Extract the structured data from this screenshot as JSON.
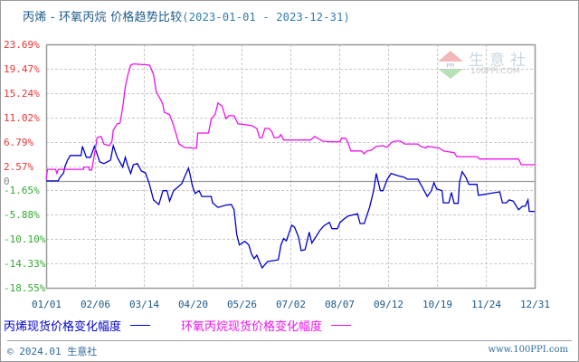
{
  "title": {
    "main": "丙烯 - 环氧丙烷 价格趋势比较",
    "range": "(2023-01-01 - 2023-12-31)"
  },
  "watermark": {
    "cn": "生意社",
    "en": "100PPI.COM",
    "icon": "ppi-logo-icon"
  },
  "footer": {
    "left": "© 2024.01 生意社",
    "right": "www.100PPI.com"
  },
  "colors": {
    "series1": "#0000cc",
    "series2": "#ee11ee",
    "positive_label": "#ee3333",
    "negative_label": "#33aa33",
    "zero_label": "#888888",
    "grid": "#c8c8c8",
    "axis": "#999999",
    "title": "#1c5a8c"
  },
  "legend": {
    "series1_label": "丙烯现货价格变化幅度",
    "series2_label": "环氧丙烷现货价格变化幅度"
  },
  "chart_data": {
    "type": "line",
    "title": "丙烯 - 环氧丙烷 价格趋势比较(2023-01-01 - 2023-12-31)",
    "xlabel": "",
    "ylabel": "",
    "x_range_days": [
      0,
      364
    ],
    "ylim": [
      -18.55,
      23.69
    ],
    "grid": true,
    "legend_position": "bottom",
    "x_tick_labels": [
      "01/01",
      "02/06",
      "03/14",
      "04/20",
      "05/26",
      "07/02",
      "08/07",
      "09/12",
      "10/19",
      "11/24",
      "12/31"
    ],
    "y_tick_labels": [
      "23.69%",
      "19.47%",
      "15.24%",
      "11.02%",
      "6.79%",
      "2.57%",
      "0",
      "-1.65%",
      "-5.88%",
      "-10.10%",
      "-14.33%",
      "-18.55%"
    ],
    "y_tick_values": [
      23.69,
      19.47,
      15.24,
      11.02,
      6.79,
      2.57,
      0,
      -1.65,
      -5.88,
      -10.1,
      -14.33,
      -18.55
    ],
    "series": [
      {
        "name": "丙烯现货价格变化幅度",
        "color": "#0000cc",
        "points": [
          [
            0,
            0.0
          ],
          [
            9,
            0.0
          ],
          [
            10,
            0.5
          ],
          [
            13,
            1.4
          ],
          [
            14,
            2.5
          ],
          [
            16,
            3.6
          ],
          [
            18,
            4.4
          ],
          [
            26,
            4.4
          ],
          [
            27,
            6.0
          ],
          [
            30,
            4.1
          ],
          [
            33,
            4.1
          ],
          [
            36,
            6.0
          ],
          [
            40,
            3.3
          ],
          [
            43,
            3.0
          ],
          [
            48,
            3.6
          ],
          [
            50,
            6.1
          ],
          [
            53,
            4.1
          ],
          [
            57,
            2.4
          ],
          [
            59,
            4.1
          ],
          [
            61,
            2.5
          ],
          [
            63,
            1.3
          ],
          [
            65,
            2.8
          ],
          [
            68,
            3.0
          ],
          [
            71,
            1.7
          ],
          [
            74,
            1.4
          ],
          [
            77,
            -0.6
          ],
          [
            80,
            -3.3
          ],
          [
            84,
            -4.1
          ],
          [
            87,
            -1.7
          ],
          [
            90,
            -1.7
          ],
          [
            92,
            -3.5
          ],
          [
            95,
            -1.7
          ],
          [
            101,
            -0.5
          ],
          [
            103,
            0.6
          ],
          [
            106,
            2.2
          ],
          [
            107,
            1.4
          ],
          [
            109,
            -0.9
          ],
          [
            111,
            -2.2
          ],
          [
            114,
            -1.7
          ],
          [
            116,
            -2.7
          ],
          [
            123,
            -2.7
          ],
          [
            124,
            -3.8
          ],
          [
            128,
            -4.6
          ],
          [
            134,
            -4.2
          ],
          [
            138,
            -4.1
          ],
          [
            140,
            -5.0
          ],
          [
            142,
            -9.3
          ],
          [
            144,
            -11.1
          ],
          [
            148,
            -10.5
          ],
          [
            151,
            -11.1
          ],
          [
            153,
            -12.7
          ],
          [
            155,
            -13.5
          ],
          [
            157,
            -12.9
          ],
          [
            161,
            -15.1
          ],
          [
            165,
            -14.0
          ],
          [
            173,
            -13.7
          ],
          [
            175,
            -11.1
          ],
          [
            177,
            -10.0
          ],
          [
            179,
            -10.4
          ],
          [
            183,
            -7.7
          ],
          [
            185,
            -8.0
          ],
          [
            188,
            -9.7
          ],
          [
            190,
            -12.1
          ],
          [
            193,
            -11.9
          ],
          [
            196,
            -8.9
          ],
          [
            198,
            -10.8
          ],
          [
            204,
            -8.6
          ],
          [
            207,
            -7.8
          ],
          [
            211,
            -7.2
          ],
          [
            213,
            -8.3
          ],
          [
            217,
            -8.3
          ],
          [
            219,
            -7.2
          ],
          [
            222,
            -6.6
          ],
          [
            225,
            -6.1
          ],
          [
            232,
            -5.7
          ],
          [
            234,
            -7.4
          ],
          [
            237,
            -7.4
          ],
          [
            241,
            -4.6
          ],
          [
            244,
            -1.7
          ],
          [
            246,
            1.3
          ],
          [
            249,
            -1.7
          ],
          [
            251,
            -1.7
          ],
          [
            254,
            0.2
          ],
          [
            257,
            1.3
          ],
          [
            262,
            0.9
          ],
          [
            267,
            0.6
          ],
          [
            269,
            0.3
          ],
          [
            277,
            0.3
          ],
          [
            281,
            -1.4
          ],
          [
            284,
            -2.7
          ],
          [
            287,
            -1.7
          ],
          [
            289,
            -0.3
          ],
          [
            291,
            -1.4
          ],
          [
            295,
            -1.7
          ],
          [
            296,
            -3.8
          ],
          [
            300,
            -3.8
          ],
          [
            302,
            -2.0
          ],
          [
            304,
            -3.9
          ],
          [
            307,
            -3.9
          ],
          [
            308,
            -0.2
          ],
          [
            310,
            1.6
          ],
          [
            313,
            0.5
          ],
          [
            315,
            -0.6
          ],
          [
            321,
            -0.6
          ],
          [
            322,
            -2.5
          ],
          [
            325,
            -2.4
          ],
          [
            330,
            -2.2
          ],
          [
            338,
            -1.9
          ],
          [
            340,
            -3.8
          ],
          [
            343,
            -3.8
          ],
          [
            345,
            -3.3
          ],
          [
            348,
            -3.5
          ],
          [
            352,
            -5.0
          ],
          [
            355,
            -4.4
          ],
          [
            357,
            -4.4
          ],
          [
            359,
            -3.3
          ],
          [
            360,
            -5.3
          ],
          [
            364,
            -5.3
          ]
        ]
      },
      {
        "name": "环氧丙烷现货价格变化幅度",
        "color": "#ee11ee",
        "points": [
          [
            0,
            0.2
          ],
          [
            1,
            2.0
          ],
          [
            7,
            2.0
          ],
          [
            8,
            1.3
          ],
          [
            9,
            2.0
          ],
          [
            28,
            2.0
          ],
          [
            28,
            2.4
          ],
          [
            32,
            2.4
          ],
          [
            32,
            1.9
          ],
          [
            34,
            1.9
          ],
          [
            36,
            4.6
          ],
          [
            38,
            7.5
          ],
          [
            41,
            7.7
          ],
          [
            43,
            6.4
          ],
          [
            47,
            6.1
          ],
          [
            49,
            6.8
          ],
          [
            50,
            8.8
          ],
          [
            53,
            9.9
          ],
          [
            55,
            10.0
          ],
          [
            57,
            12.7
          ],
          [
            59,
            16.3
          ],
          [
            61,
            18.5
          ],
          [
            63,
            20.1
          ],
          [
            65,
            20.3
          ],
          [
            77,
            20.1
          ],
          [
            80,
            18.5
          ],
          [
            82,
            15.5
          ],
          [
            86,
            13.8
          ],
          [
            87,
            13.2
          ],
          [
            88,
            11.9
          ],
          [
            92,
            11.5
          ],
          [
            95,
            9.6
          ],
          [
            99,
            6.4
          ],
          [
            103,
            5.8
          ],
          [
            109,
            5.7
          ],
          [
            112,
            5.7
          ],
          [
            113,
            8.3
          ],
          [
            121,
            8.3
          ],
          [
            123,
            10.7
          ],
          [
            126,
            11.6
          ],
          [
            128,
            13.5
          ],
          [
            131,
            13.0
          ],
          [
            134,
            10.8
          ],
          [
            136,
            11.3
          ],
          [
            140,
            11.3
          ],
          [
            143,
            9.9
          ],
          [
            153,
            9.6
          ],
          [
            157,
            9.1
          ],
          [
            159,
            7.5
          ],
          [
            161,
            7.5
          ],
          [
            163,
            9.1
          ],
          [
            166,
            9.1
          ],
          [
            168,
            8.6
          ],
          [
            170,
            7.5
          ],
          [
            173,
            7.5
          ],
          [
            175,
            8.0
          ],
          [
            177,
            7.1
          ],
          [
            197,
            7.1
          ],
          [
            200,
            7.7
          ],
          [
            204,
            7.2
          ],
          [
            206,
            6.9
          ],
          [
            211,
            6.8
          ],
          [
            219,
            6.8
          ],
          [
            220,
            7.4
          ],
          [
            223,
            7.4
          ],
          [
            225,
            6.6
          ],
          [
            227,
            5.2
          ],
          [
            235,
            5.2
          ],
          [
            237,
            4.7
          ],
          [
            239,
            5.2
          ],
          [
            242,
            5.3
          ],
          [
            246,
            6.0
          ],
          [
            251,
            6.1
          ],
          [
            254,
            5.8
          ],
          [
            257,
            6.6
          ],
          [
            260,
            6.9
          ],
          [
            264,
            6.9
          ],
          [
            267,
            6.4
          ],
          [
            277,
            6.4
          ],
          [
            279,
            6.0
          ],
          [
            283,
            5.7
          ],
          [
            284,
            6.0
          ],
          [
            293,
            5.7
          ],
          [
            296,
            5.2
          ],
          [
            304,
            4.9
          ],
          [
            306,
            4.2
          ],
          [
            321,
            4.2
          ],
          [
            323,
            3.8
          ],
          [
            352,
            3.8
          ],
          [
            354,
            2.8
          ],
          [
            364,
            2.8
          ]
        ]
      }
    ]
  }
}
